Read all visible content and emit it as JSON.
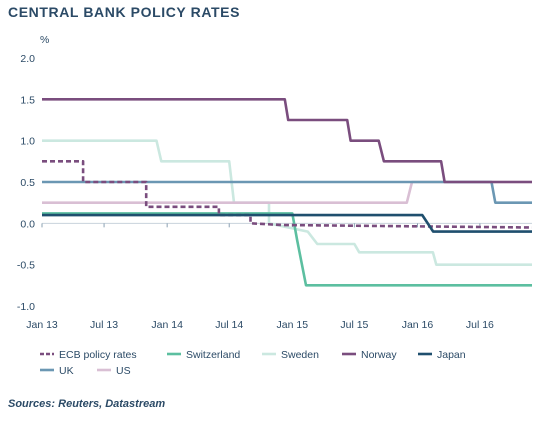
{
  "title": "CENTRAL BANK POLICY RATES",
  "source": "Sources: Reuters, Datastream",
  "chart_data": {
    "type": "line",
    "ylabel": "%",
    "ylim": [
      -1.0,
      2.0
    ],
    "yticks": [
      2.0,
      1.5,
      1.0,
      0.5,
      0.0,
      -0.5,
      -1.0
    ],
    "ytick_labels": [
      "2.0",
      "1.5",
      "1.0",
      "0.5",
      "0.0",
      "-0.5",
      "-1.0"
    ],
    "xlim": [
      "2013-01-01",
      "2016-11-30"
    ],
    "xticks": [
      "2013-01-01",
      "2013-07-01",
      "2014-01-01",
      "2014-07-01",
      "2015-01-01",
      "2015-07-01",
      "2016-01-01",
      "2016-07-01"
    ],
    "xtick_labels": [
      "Jan 13",
      "Jul 13",
      "Jan 14",
      "Jul 14",
      "Jan 15",
      "Jul 15",
      "Jan 16",
      "Jul 16"
    ],
    "grid": false,
    "legend_position": "bottom",
    "series": [
      {
        "name": "ECB policy rates",
        "color": "#7a4d7e",
        "dash": true,
        "points": [
          [
            "2013-01-01",
            0.75
          ],
          [
            "2013-05-01",
            0.75
          ],
          [
            "2013-05-01",
            0.5
          ],
          [
            "2013-11-01",
            0.5
          ],
          [
            "2013-11-01",
            0.2
          ],
          [
            "2014-06-01",
            0.2
          ],
          [
            "2014-06-01",
            0.1
          ],
          [
            "2014-09-01",
            0.1
          ],
          [
            "2014-09-01",
            0.0
          ],
          [
            "2014-12-01",
            -0.02
          ],
          [
            "2016-11-30",
            -0.05
          ]
        ]
      },
      {
        "name": "Switzerland",
        "color": "#5cbfa0",
        "dash": false,
        "points": [
          [
            "2013-01-01",
            0.12
          ],
          [
            "2015-01-01",
            0.12
          ],
          [
            "2015-01-15",
            -0.2
          ],
          [
            "2015-02-10",
            -0.75
          ],
          [
            "2016-11-30",
            -0.75
          ]
        ]
      },
      {
        "name": "Sweden",
        "color": "#cbe8e0",
        "dash": false,
        "points": [
          [
            "2013-01-01",
            1.0
          ],
          [
            "2013-12-01",
            1.0
          ],
          [
            "2013-12-15",
            0.75
          ],
          [
            "2014-07-01",
            0.75
          ],
          [
            "2014-07-15",
            0.25
          ],
          [
            "2014-10-25",
            0.25
          ],
          [
            "2014-10-25",
            0.0
          ],
          [
            "2015-02-15",
            -0.1
          ],
          [
            "2015-03-15",
            -0.25
          ],
          [
            "2015-07-01",
            -0.25
          ],
          [
            "2015-07-15",
            -0.35
          ],
          [
            "2016-02-15",
            -0.35
          ],
          [
            "2016-02-25",
            -0.5
          ],
          [
            "2016-11-30",
            -0.5
          ]
        ]
      },
      {
        "name": "Norway",
        "color": "#7a4d7e",
        "dash": false,
        "points": [
          [
            "2013-01-01",
            1.5
          ],
          [
            "2014-12-10",
            1.5
          ],
          [
            "2014-12-20",
            1.25
          ],
          [
            "2015-06-10",
            1.25
          ],
          [
            "2015-06-20",
            1.0
          ],
          [
            "2015-09-10",
            1.0
          ],
          [
            "2015-09-25",
            0.75
          ],
          [
            "2016-03-10",
            0.75
          ],
          [
            "2016-03-20",
            0.5
          ],
          [
            "2016-11-30",
            0.5
          ]
        ]
      },
      {
        "name": "Japan",
        "color": "#1f4f6e",
        "dash": false,
        "points": [
          [
            "2013-01-01",
            0.1
          ],
          [
            "2016-01-15",
            0.1
          ],
          [
            "2016-02-16",
            -0.1
          ],
          [
            "2016-11-30",
            -0.1
          ]
        ]
      },
      {
        "name": "UK",
        "color": "#6b97b3",
        "dash": false,
        "points": [
          [
            "2013-01-01",
            0.5
          ],
          [
            "2016-08-04",
            0.5
          ],
          [
            "2016-08-15",
            0.25
          ],
          [
            "2016-11-30",
            0.25
          ]
        ]
      },
      {
        "name": "US",
        "color": "#d9bfd4",
        "dash": false,
        "points": [
          [
            "2013-01-01",
            0.25
          ],
          [
            "2015-12-01",
            0.25
          ],
          [
            "2015-12-16",
            0.5
          ],
          [
            "2016-11-30",
            0.5
          ]
        ]
      }
    ]
  }
}
